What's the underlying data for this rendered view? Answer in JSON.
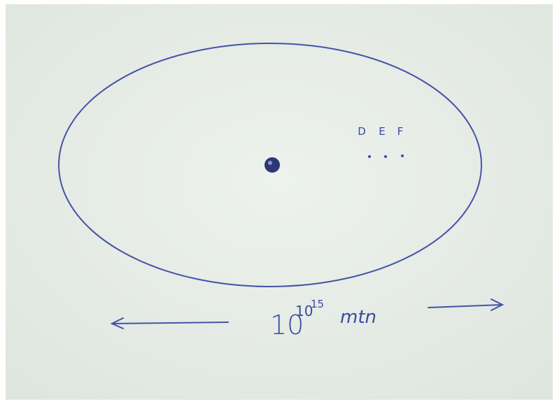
{
  "points": [
    {
      "label": "D"
    },
    {
      "label": "E"
    },
    {
      "label": "F"
    }
  ],
  "scale": {
    "base": "10",
    "exponent": "10",
    "exponent_of_exponent": "15",
    "unit": "mtn"
  }
}
